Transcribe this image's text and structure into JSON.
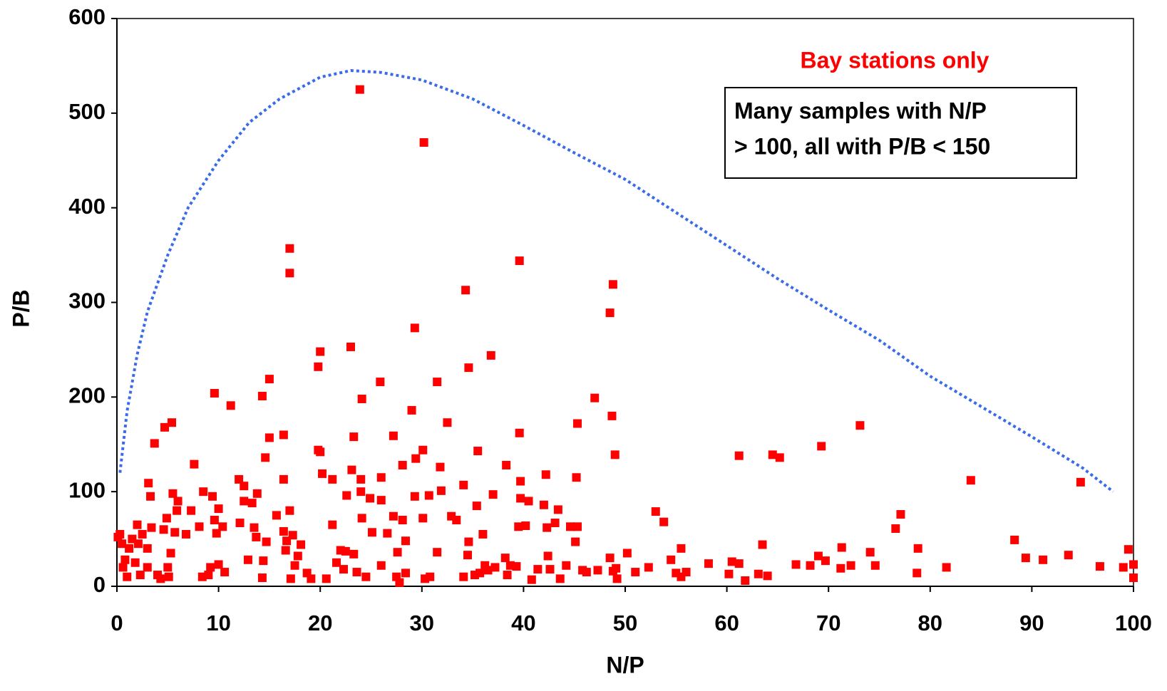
{
  "chart_data": {
    "type": "scatter",
    "x_label": "N/P",
    "y_label": "P/B",
    "annotations": [
      "Bay stations only"
    ],
    "note_box": [
      "Many samples with N/P",
      "> 100, all with P/B < 150"
    ],
    "xlim": [
      0,
      100
    ],
    "xticks": [
      0,
      10,
      20,
      30,
      40,
      50,
      60,
      70,
      80,
      90,
      100
    ],
    "ylim": [
      0,
      600
    ],
    "yticks": [
      0,
      100,
      200,
      300,
      400,
      500,
      600
    ],
    "annotation_color": "#ff0000",
    "series": [
      {
        "type": "scatter",
        "marker": "square",
        "color": "#ff0000",
        "x": [
          23.9,
          30.2,
          17,
          17,
          39.6,
          34.3,
          48.8,
          48.5,
          29.3,
          23,
          20,
          19.8,
          34.6,
          36.8,
          31.5,
          25.9,
          15,
          24.1,
          47,
          9.6,
          11.2,
          14.3,
          29,
          48.7,
          45.3,
          32.5,
          5.4,
          4.7,
          3.7,
          73.1,
          69.3,
          61.2,
          64.5,
          65.2,
          49,
          39.6,
          27.2,
          23.3,
          16.4,
          15,
          19.8,
          20,
          30.1,
          35.5,
          29.4,
          14.6,
          7.6,
          38.3,
          28.1,
          31.8,
          84,
          94.8,
          42.2,
          45.2,
          20.2,
          21.2,
          23.1,
          24,
          26,
          12,
          16.4,
          3.1,
          12.5,
          34.1,
          37,
          39.7,
          40.5,
          39.7,
          42,
          43.4,
          36,
          0.1,
          0.3,
          0.5,
          0.6,
          0.8,
          1,
          1.2,
          1.5,
          1.8,
          2,
          2.1,
          2.3,
          2.5,
          3,
          3,
          3.3,
          3.4,
          4,
          4.3,
          4.6,
          4.9,
          5,
          5.1,
          5.3,
          5.5,
          5.7,
          5.9,
          6,
          6.8,
          7.3,
          8.1,
          8.4,
          8.5,
          9,
          9.2,
          9.4,
          9.6,
          9.8,
          10,
          10,
          10.4,
          10.6,
          12.1,
          12.5,
          12.9,
          13.3,
          13.5,
          13.7,
          13.8,
          14.3,
          14.4,
          14.7,
          15.7,
          16.4,
          16.6,
          16.7,
          17,
          17.1,
          17.3,
          17.5,
          17.8,
          18.1,
          18.7,
          19.1,
          20.6,
          21.2,
          21.6,
          22,
          22.3,
          22.5,
          22.6,
          23.3,
          23.6,
          24,
          24.1,
          24.5,
          24.9,
          25.1,
          26,
          26,
          26.6,
          27.2,
          27.5,
          27.6,
          27.8,
          28.1,
          28.4,
          28.4,
          29.3,
          30.1,
          30.3,
          30.7,
          30.8,
          31.5,
          31.9,
          32.9,
          33.4,
          34.1,
          34.5,
          34.6,
          35.2,
          35.4,
          35.7,
          36.2,
          36.5,
          37.2,
          38.2,
          38.4,
          38.7,
          39.3,
          39.5,
          40.2,
          40.8,
          41.4,
          42.3,
          42.4,
          42.6,
          43.1,
          43.6,
          44.2,
          44.6,
          45.1,
          45.3,
          45.8,
          46.2,
          47.3,
          48.5,
          48.8,
          49.2,
          49.1,
          50.2,
          51,
          52.3,
          53,
          53.8,
          54.5,
          55,
          55.5,
          55.5,
          56,
          58.2,
          60.2,
          60.5,
          61.2,
          61.8,
          63.1,
          63.5,
          64,
          66.8,
          68.2,
          69,
          69.7,
          71.2,
          71.3,
          72.2,
          74.1,
          74.6,
          76.6,
          77.1,
          78.7,
          78.8,
          81.6,
          88.3,
          89.4,
          91.1,
          93.6,
          96.7,
          99,
          99.5,
          100,
          100
        ],
        "values": [
          525,
          469,
          357,
          331,
          344,
          313,
          319,
          289,
          273,
          253,
          248,
          232,
          231,
          244,
          216,
          216,
          219,
          198,
          199,
          204,
          191,
          201,
          186,
          180,
          172,
          173,
          173,
          168,
          151,
          170,
          148,
          138,
          139,
          136,
          139,
          162,
          159,
          158,
          160,
          157,
          144,
          142,
          144,
          143,
          135,
          136,
          129,
          128,
          128,
          126,
          112,
          110,
          118,
          115,
          119,
          113,
          123,
          113,
          115,
          113,
          113,
          109,
          106,
          107,
          97,
          111,
          90,
          93,
          86,
          81,
          55,
          52,
          55,
          45,
          20,
          28,
          10,
          40,
          50,
          25,
          65,
          45,
          12,
          55,
          20,
          40,
          95,
          62,
          12,
          8,
          60,
          72,
          20,
          10,
          35,
          98,
          57,
          80,
          90,
          55,
          80,
          63,
          10,
          100,
          12,
          20,
          95,
          70,
          56,
          82,
          23,
          63,
          15,
          67,
          90,
          28,
          88,
          62,
          52,
          98,
          9,
          27,
          47,
          75,
          58,
          38,
          48,
          80,
          8,
          54,
          22,
          32,
          44,
          14,
          8,
          8,
          65,
          25,
          38,
          18,
          37,
          96,
          34,
          15,
          100,
          72,
          10,
          93,
          57,
          22,
          91,
          56,
          74,
          10,
          36,
          4,
          70,
          48,
          14,
          95,
          72,
          8,
          96,
          10,
          36,
          101,
          74,
          70,
          10,
          33,
          47,
          12,
          85,
          14,
          22,
          17,
          20,
          30,
          12,
          22,
          21,
          63,
          64,
          7,
          18,
          62,
          32,
          18,
          67,
          8,
          22,
          63,
          47,
          63,
          17,
          15,
          17,
          30,
          16,
          8,
          19,
          35,
          15,
          20,
          79,
          68,
          28,
          14,
          10,
          40,
          15,
          24,
          13,
          26,
          24,
          6,
          13,
          44,
          11,
          23,
          22,
          32,
          27,
          19,
          41,
          22,
          36,
          22,
          61,
          76,
          14,
          40,
          20,
          49,
          30,
          28,
          33,
          21,
          20,
          39,
          23,
          9
        ]
      },
      {
        "type": "line",
        "style": "dotted",
        "color": "#3b6ce8",
        "x": [
          0.3,
          1,
          2,
          3,
          5,
          7,
          10,
          13,
          16,
          20,
          23,
          26,
          30,
          35,
          40,
          45,
          50,
          55,
          60,
          65,
          70,
          75,
          80,
          85,
          90,
          95,
          98
        ],
        "values": [
          120,
          185,
          245,
          290,
          350,
          400,
          450,
          490,
          515,
          538,
          545,
          543,
          535,
          515,
          487,
          458,
          430,
          395,
          360,
          325,
          292,
          260,
          222,
          190,
          158,
          125,
          100
        ]
      }
    ]
  }
}
